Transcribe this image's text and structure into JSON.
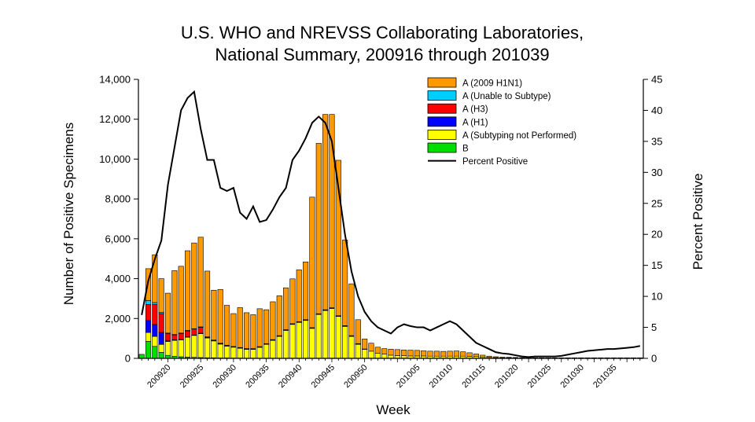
{
  "chart_data": {
    "type": "bar",
    "title_line1": "U.S. WHO and NREVSS Collaborating Laboratories,",
    "title_line2": "National Summary, 200916 through 201039",
    "xlabel": "Week",
    "ylabel": "Number of Positive Specimens",
    "y2label": "Percent Positive",
    "ylim": [
      0,
      14000
    ],
    "y2lim": [
      0,
      45
    ],
    "yticks": [
      "0",
      "2,000",
      "4,000",
      "6,000",
      "8,000",
      "10,000",
      "12,000",
      "14,000"
    ],
    "y2ticks": [
      "0",
      "5",
      "10",
      "15",
      "20",
      "25",
      "30",
      "35",
      "40",
      "45"
    ],
    "stacked": true,
    "legend_position": "top-right",
    "x": [
      "200916",
      "200917",
      "200918",
      "200919",
      "200920",
      "200921",
      "200922",
      "200923",
      "200924",
      "200925",
      "200926",
      "200927",
      "200928",
      "200929",
      "200930",
      "200931",
      "200932",
      "200933",
      "200934",
      "200935",
      "200936",
      "200937",
      "200938",
      "200939",
      "200940",
      "200941",
      "200942",
      "200943",
      "200944",
      "200945",
      "200946",
      "200947",
      "200948",
      "200949",
      "200950",
      "200951",
      "200952",
      "200953",
      "201001",
      "201002",
      "201003",
      "201004",
      "201005",
      "201006",
      "201007",
      "201008",
      "201009",
      "201010",
      "201011",
      "201012",
      "201013",
      "201014",
      "201015",
      "201016",
      "201017",
      "201018",
      "201019",
      "201020",
      "201021",
      "201022",
      "201023",
      "201024",
      "201025",
      "201026",
      "201027",
      "201028",
      "201029",
      "201030",
      "201031",
      "201032",
      "201033",
      "201034",
      "201035",
      "201036",
      "201037",
      "201038",
      "201039"
    ],
    "xtick_labels": [
      "200920",
      "200925",
      "200930",
      "200935",
      "200940",
      "200945",
      "200950",
      "201005",
      "201010",
      "201015",
      "201020",
      "201025",
      "201030",
      "201035"
    ],
    "series": [
      {
        "name": "B",
        "color": "#00dd00",
        "values": [
          200,
          850,
          600,
          300,
          150,
          100,
          80,
          60,
          50,
          40,
          30,
          30,
          20,
          20,
          15,
          15,
          10,
          10,
          10,
          10,
          10,
          10,
          10,
          10,
          10,
          10,
          10,
          10,
          10,
          10,
          10,
          10,
          10,
          10,
          10,
          10,
          10,
          10,
          10,
          10,
          10,
          10,
          10,
          10,
          10,
          10,
          10,
          10,
          10,
          10,
          10,
          10,
          10,
          10,
          10,
          10,
          10,
          10,
          10,
          10,
          10,
          10,
          10,
          10,
          10,
          10,
          10,
          10,
          10,
          10,
          10,
          10,
          10,
          10,
          10,
          10,
          10
        ]
      },
      {
        "name": "A (Subtyping not Performed)",
        "color": "#ffff00",
        "values": [
          0,
          450,
          500,
          400,
          700,
          800,
          850,
          1000,
          1100,
          1200,
          1000,
          850,
          700,
          600,
          550,
          500,
          450,
          450,
          550,
          700,
          900,
          1100,
          1400,
          1700,
          1800,
          1900,
          1500,
          2200,
          2400,
          2500,
          2100,
          1600,
          1100,
          700,
          450,
          350,
          250,
          200,
          150,
          130,
          120,
          110,
          110,
          110,
          100,
          100,
          100,
          100,
          100,
          100,
          90,
          80,
          60,
          40,
          30,
          20,
          20,
          15,
          15,
          15,
          10,
          10,
          10,
          10,
          10,
          10,
          10,
          10,
          10,
          10,
          10,
          10,
          10,
          10,
          10,
          10,
          10
        ]
      },
      {
        "name": "A (H1)",
        "color": "#0000ff",
        "values": [
          0,
          600,
          600,
          600,
          50,
          30,
          20,
          20,
          20,
          20,
          10,
          10,
          10,
          10,
          10,
          10,
          10,
          10,
          10,
          10,
          10,
          10,
          10,
          10,
          10,
          10,
          10,
          10,
          10,
          10,
          10,
          10,
          10,
          10,
          0,
          0,
          0,
          0,
          0,
          0,
          0,
          0,
          0,
          0,
          0,
          0,
          0,
          0,
          0,
          0,
          0,
          0,
          0,
          0,
          0,
          0,
          0,
          0,
          0,
          0,
          0,
          0,
          0,
          0,
          0,
          0,
          0,
          0,
          0,
          0,
          0,
          0,
          0,
          0,
          0,
          0,
          0
        ]
      },
      {
        "name": "A (H3)",
        "color": "#ff0000",
        "values": [
          0,
          800,
          1000,
          950,
          350,
          250,
          300,
          300,
          300,
          300,
          30,
          20,
          20,
          20,
          10,
          10,
          10,
          10,
          10,
          10,
          10,
          10,
          10,
          10,
          10,
          10,
          10,
          10,
          10,
          10,
          10,
          10,
          10,
          10,
          0,
          0,
          0,
          0,
          0,
          0,
          0,
          0,
          0,
          0,
          0,
          0,
          0,
          0,
          0,
          0,
          0,
          0,
          0,
          0,
          0,
          0,
          0,
          0,
          0,
          0,
          0,
          0,
          0,
          0,
          0,
          0,
          0,
          0,
          0,
          0,
          0,
          0,
          0,
          0,
          0,
          0,
          0
        ]
      },
      {
        "name": "A (Unable to Subtype)",
        "color": "#00ccff",
        "values": [
          0,
          200,
          100,
          50,
          20,
          20,
          20,
          20,
          20,
          20,
          10,
          10,
          10,
          10,
          10,
          10,
          10,
          10,
          10,
          10,
          10,
          10,
          10,
          10,
          10,
          10,
          10,
          10,
          10,
          10,
          10,
          10,
          10,
          10,
          10,
          0,
          0,
          0,
          0,
          0,
          0,
          0,
          0,
          0,
          0,
          0,
          0,
          0,
          0,
          0,
          0,
          0,
          0,
          0,
          0,
          0,
          0,
          0,
          0,
          0,
          0,
          0,
          0,
          0,
          0,
          0,
          0,
          0,
          0,
          0,
          0,
          0,
          0,
          0,
          0,
          0,
          0
        ]
      },
      {
        "name": "A (2009 H1N1)",
        "color": "#ff9900",
        "values": [
          0,
          1600,
          2400,
          1700,
          2000,
          3200,
          3350,
          4000,
          4300,
          4500,
          3300,
          2500,
          2700,
          2000,
          1650,
          2000,
          1800,
          1700,
          1900,
          1700,
          1900,
          2000,
          2100,
          2250,
          2600,
          2900,
          6550,
          8550,
          9800,
          9700,
          7800,
          4300,
          2600,
          1200,
          500,
          400,
          300,
          280,
          300,
          300,
          290,
          290,
          280,
          260,
          250,
          250,
          240,
          250,
          260,
          220,
          180,
          130,
          90,
          60,
          40,
          30,
          25,
          20,
          10,
          10,
          10,
          5,
          5,
          5,
          5,
          5,
          5,
          5,
          5,
          5,
          5,
          5,
          5,
          5,
          5,
          5,
          5
        ]
      },
      {
        "name": "Percent Positive",
        "type": "line",
        "color": "#000000",
        "values": [
          7,
          12.5,
          16,
          19,
          28,
          34,
          40,
          42,
          43,
          37,
          32,
          32,
          27.5,
          27,
          27.5,
          23.5,
          22.5,
          24.5,
          22,
          22.3,
          24,
          26,
          27.5,
          32,
          33.5,
          35.5,
          38,
          39,
          38,
          35,
          27.5,
          20,
          14,
          10,
          7.5,
          6,
          5,
          4.5,
          4,
          5,
          5.5,
          5.2,
          5,
          5,
          4.5,
          5,
          5.5,
          6,
          5.5,
          4.5,
          3.5,
          2.5,
          2,
          1.5,
          1,
          0.8,
          0.7,
          0.5,
          0.3,
          0.2,
          0.3,
          0.3,
          0.3,
          0.3,
          0.4,
          0.6,
          0.8,
          1,
          1.2,
          1.3,
          1.4,
          1.5,
          1.5,
          1.6,
          1.7,
          1.8,
          2
        ]
      }
    ],
    "legend": [
      {
        "label": "A (2009 H1N1)",
        "color": "#ff9900",
        "kind": "box"
      },
      {
        "label": "A (Unable to Subtype)",
        "color": "#00ccff",
        "kind": "box"
      },
      {
        "label": "A (H3)",
        "color": "#ff0000",
        "kind": "box"
      },
      {
        "label": "A (H1)",
        "color": "#0000ff",
        "kind": "box"
      },
      {
        "label": "A (Subtyping not Performed)",
        "color": "#ffff00",
        "kind": "box"
      },
      {
        "label": "B",
        "color": "#00dd00",
        "kind": "box"
      },
      {
        "label": "Percent Positive",
        "color": "#000000",
        "kind": "line"
      }
    ]
  }
}
